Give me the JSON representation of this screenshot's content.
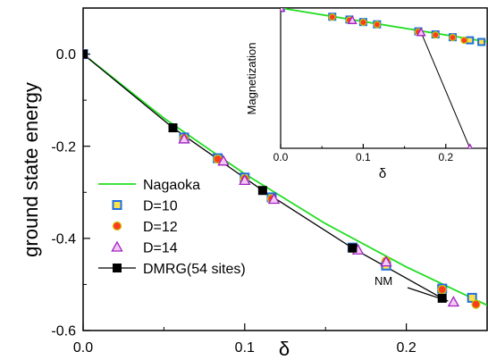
{
  "chart_data": [
    {
      "type": "scatter",
      "xlabel": "δ",
      "ylabel": "ground state energy",
      "xlim": [
        0.0,
        0.25
      ],
      "ylim": [
        -0.6,
        0.1
      ],
      "xticks": [
        "0.0",
        "0.1",
        "0.2"
      ],
      "yticks": [
        "0.0",
        "-0.2",
        "-0.4",
        "-0.6"
      ],
      "legend_position": "bottom-left",
      "series": [
        {
          "name": "Nagaoka",
          "kind": "line",
          "color": "#22dd22",
          "x": [
            0.0,
            0.05,
            0.1,
            0.15,
            0.2,
            0.25
          ],
          "y": [
            0.0,
            -0.139,
            -0.26,
            -0.368,
            -0.462,
            -0.545
          ]
        },
        {
          "name": "D=10",
          "kind": "marker",
          "marker": "square",
          "color": "#1f6fe0",
          "x": [
            0.0,
            0.0625,
            0.0833,
            0.1,
            0.1167,
            0.1667,
            0.1875,
            0.2222,
            0.2407
          ],
          "y": [
            0.0,
            -0.181,
            -0.226,
            -0.268,
            -0.311,
            -0.42,
            -0.459,
            -0.509,
            -0.529
          ]
        },
        {
          "name": "D=12",
          "kind": "marker",
          "marker": "circle",
          "color": "#ff3b1f",
          "x": [
            0.0,
            0.0625,
            0.0833,
            0.1,
            0.1167,
            0.1667,
            0.1875,
            0.2222,
            0.2431
          ],
          "y": [
            0.0,
            -0.183,
            -0.228,
            -0.271,
            -0.314,
            -0.422,
            -0.449,
            -0.511,
            -0.543
          ]
        },
        {
          "name": "D=14",
          "kind": "marker",
          "marker": "triangle",
          "color": "#a020c0",
          "x": [
            0.0,
            0.0625,
            0.0868,
            0.1,
            0.1181,
            0.1701,
            0.1875,
            0.2292
          ],
          "y": [
            0.0,
            -0.184,
            -0.232,
            -0.274,
            -0.315,
            -0.425,
            -0.451,
            -0.538
          ]
        },
        {
          "name": "DMRG(54 sites)",
          "kind": "line+marker",
          "marker": "square",
          "color": "#000000",
          "x": [
            0.0,
            0.0556,
            0.1111,
            0.1667,
            0.2222
          ],
          "y": [
            0.0,
            -0.16,
            -0.296,
            -0.421,
            -0.53
          ]
        }
      ],
      "annotations": [
        {
          "text": "NM",
          "arrow_to": {
            "x": 0.2292,
            "y": -0.538
          }
        }
      ]
    },
    {
      "type": "scatter",
      "inset": true,
      "xlabel": "δ",
      "ylabel": "Magnetization",
      "xlim": [
        0.0,
        0.25
      ],
      "ylim": [
        0.0,
        0.5
      ],
      "xticks": [
        "0.0",
        "0.1",
        "0.2"
      ],
      "series": [
        {
          "name": "Nagaoka",
          "kind": "line",
          "color": "#22dd22",
          "x": [
            0.0,
            0.25
          ],
          "y": [
            0.5,
            0.38
          ]
        },
        {
          "name": "D=10",
          "kind": "marker",
          "marker": "square",
          "color": "#1f6fe0",
          "x": [
            0.0,
            0.0625,
            0.0833,
            0.1,
            0.1167,
            0.1667,
            0.1875,
            0.2083,
            0.2292,
            0.2431
          ],
          "y": [
            0.5,
            0.469,
            0.459,
            0.45,
            0.442,
            0.417,
            0.406,
            0.396,
            0.385,
            0.379
          ]
        },
        {
          "name": "D=12",
          "kind": "marker",
          "marker": "circle",
          "color": "#ff3b1f",
          "x": [
            0.0,
            0.0625,
            0.0833,
            0.1,
            0.1167,
            0.1667,
            0.1875,
            0.2083,
            0.2222
          ],
          "y": [
            0.5,
            0.468,
            0.457,
            0.449,
            0.441,
            0.415,
            0.404,
            0.395,
            0.385
          ]
        },
        {
          "name": "D=14",
          "kind": "marker",
          "marker": "triangle",
          "color": "#a020c0",
          "x": [
            0.0,
            0.0868,
            0.1701,
            0.2292
          ],
          "y": [
            0.5,
            0.456,
            0.413,
            0.0
          ]
        },
        {
          "name": "D=14 (drop)",
          "kind": "line",
          "color": "#000000",
          "x": [
            0.1701,
            0.2292
          ],
          "y": [
            0.413,
            0.0
          ]
        }
      ]
    }
  ]
}
